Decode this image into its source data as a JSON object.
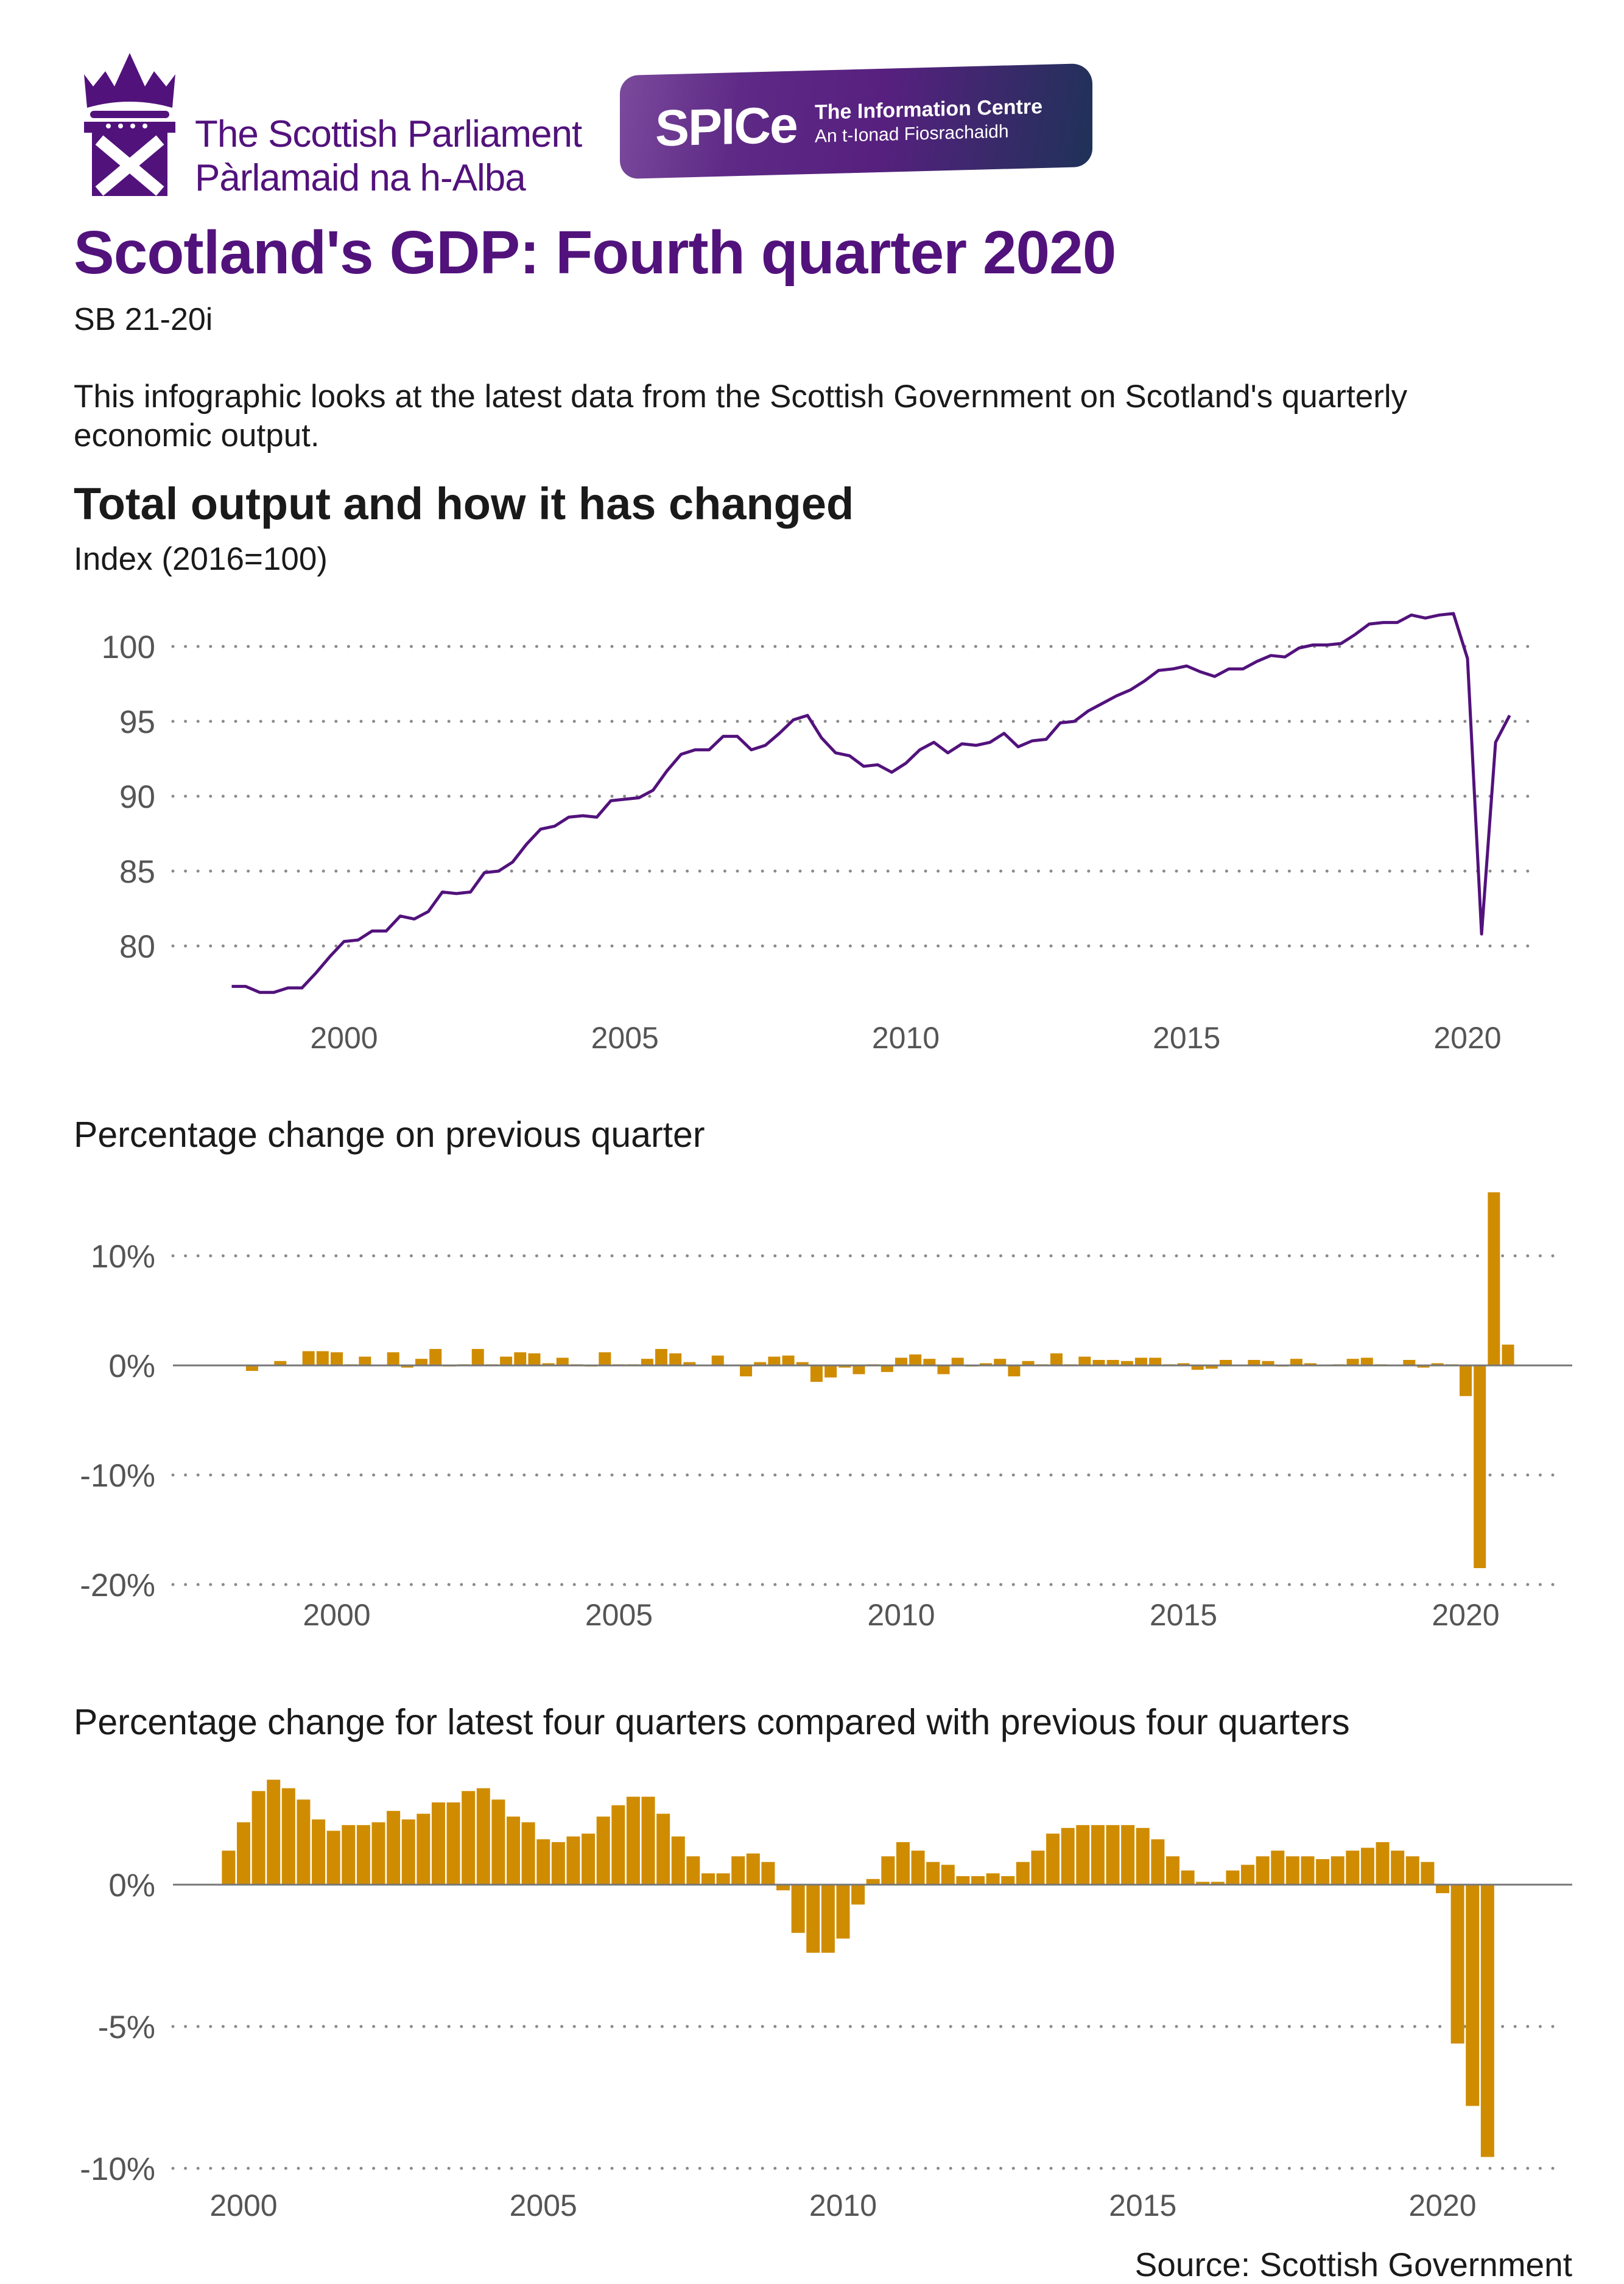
{
  "header": {
    "parliament_name_en": "The Scottish Parliament",
    "parliament_name_gd": "Pàrlamaid na h-Alba",
    "spice_abbr": "SPICe",
    "spice_en": "The Information Centre",
    "spice_gd": "An t-Ionad Fiosrachaidh",
    "logo_icon": "crown-saltire-icon"
  },
  "title": "Scotland's GDP: Fourth quarter 2020",
  "ref": "SB  21-20i",
  "intro": "This infographic looks at the latest data from the Scottish Government on Scotland's quarterly economic output.",
  "section_title": "Total output and how it has changed",
  "source": "Source: Scottish Government",
  "colors": {
    "brand_purple": "#52127c",
    "bar_gold": "#d08c00",
    "grid": "#8a8a8a"
  },
  "chart_data": [
    {
      "type": "line",
      "title": "",
      "ylabel": "Index (2016=100)",
      "start": "1998 Q1",
      "frequency": "quarterly",
      "yticks": [
        80,
        85,
        90,
        95,
        100
      ],
      "ytick_labels": [
        "80",
        "85",
        "90",
        "95",
        "100"
      ],
      "xticks": [
        2000,
        2005,
        2010,
        2015,
        2020
      ],
      "xtick_labels": [
        "2000",
        "2005",
        "2010",
        "2015",
        "2020"
      ],
      "grid": "horizontal dotted",
      "color": "#52127c",
      "values": [
        77.3,
        77.3,
        76.9,
        76.9,
        77.2,
        77.2,
        78.2,
        79.3,
        80.3,
        80.4,
        81.0,
        81.0,
        82.0,
        81.8,
        82.3,
        83.6,
        83.5,
        83.6,
        84.9,
        85.0,
        85.6,
        86.8,
        87.8,
        88.0,
        88.6,
        88.7,
        88.6,
        89.7,
        89.8,
        89.9,
        90.4,
        91.7,
        92.8,
        93.1,
        93.1,
        94.0,
        94.0,
        93.1,
        93.4,
        94.2,
        95.1,
        95.4,
        93.9,
        92.9,
        92.7,
        92.0,
        92.1,
        91.6,
        92.2,
        93.1,
        93.6,
        92.9,
        93.5,
        93.4,
        93.6,
        94.2,
        93.3,
        93.7,
        93.8,
        94.9,
        95.0,
        95.7,
        96.2,
        96.7,
        97.1,
        97.7,
        98.4,
        98.5,
        98.7,
        98.3,
        98.0,
        98.5,
        98.5,
        99.0,
        99.4,
        99.3,
        99.9,
        100.1,
        100.1,
        100.2,
        100.8,
        101.5,
        101.6,
        101.6,
        102.1,
        101.9,
        102.1,
        102.2,
        99.2,
        80.8,
        93.6,
        95.4
      ]
    },
    {
      "type": "bar",
      "title": "Percentage change on previous quarter",
      "start": "1998 Q1",
      "frequency": "quarterly",
      "yticks": [
        10,
        0,
        -10,
        -20
      ],
      "ytick_labels": [
        "10%",
        "0%",
        "-10%",
        "-20%"
      ],
      "xticks": [
        2000,
        2005,
        2010,
        2015,
        2020
      ],
      "xtick_labels": [
        "2000",
        "2005",
        "2010",
        "2015",
        "2020"
      ],
      "grid": "horizontal dotted",
      "color": "#d08c00",
      "values": [
        0.0,
        0.0,
        -0.5,
        0.0,
        0.4,
        0.0,
        1.3,
        1.3,
        1.2,
        0.1,
        0.8,
        0.0,
        1.2,
        -0.2,
        0.6,
        1.5,
        -0.1,
        0.1,
        1.5,
        0.1,
        0.8,
        1.2,
        1.1,
        0.2,
        0.7,
        0.1,
        -0.1,
        1.2,
        0.1,
        0.1,
        0.6,
        1.5,
        1.1,
        0.3,
        0.0,
        0.9,
        0.0,
        -1.0,
        0.3,
        0.8,
        0.9,
        0.3,
        -1.5,
        -1.1,
        -0.2,
        -0.8,
        0.1,
        -0.6,
        0.7,
        1.0,
        0.6,
        -0.8,
        0.7,
        -0.1,
        0.2,
        0.6,
        -1.0,
        0.4,
        0.1,
        1.1,
        0.1,
        0.8,
        0.5,
        0.5,
        0.4,
        0.7,
        0.7,
        0.1,
        0.2,
        -0.4,
        -0.3,
        0.5,
        0.0,
        0.5,
        0.4,
        -0.1,
        0.6,
        0.2,
        0.0,
        0.1,
        0.6,
        0.7,
        0.1,
        0.0,
        0.5,
        -0.2,
        0.2,
        0.1,
        -2.8,
        -18.5,
        15.8,
        1.9
      ]
    },
    {
      "type": "bar",
      "title": "Percentage change for latest four quarters compared with previous four quarters",
      "start": "1999 Q4",
      "frequency": "quarterly",
      "yticks": [
        0,
        -5,
        -10
      ],
      "ytick_labels": [
        "0%",
        "-5%",
        "-10%"
      ],
      "xticks": [
        2000,
        2005,
        2010,
        2015,
        2020
      ],
      "xtick_labels": [
        "2000",
        "2005",
        "2010",
        "2015",
        "2020"
      ],
      "grid": "horizontal dotted",
      "color": "#d08c00",
      "values": [
        1.2,
        2.2,
        3.3,
        3.7,
        3.4,
        3.0,
        2.3,
        1.9,
        2.1,
        2.1,
        2.2,
        2.6,
        2.3,
        2.5,
        2.9,
        2.9,
        3.3,
        3.4,
        3.0,
        2.4,
        2.2,
        1.6,
        1.5,
        1.7,
        1.8,
        2.4,
        2.8,
        3.1,
        3.1,
        2.5,
        1.7,
        1.0,
        0.4,
        0.4,
        1.0,
        1.1,
        0.8,
        -0.2,
        -1.7,
        -2.4,
        -2.4,
        -1.9,
        -0.7,
        0.2,
        1.0,
        1.5,
        1.2,
        0.8,
        0.7,
        0.3,
        0.3,
        0.4,
        0.3,
        0.8,
        1.2,
        1.8,
        2.0,
        2.1,
        2.1,
        2.1,
        2.1,
        2.0,
        1.6,
        1.0,
        0.5,
        0.1,
        0.1,
        0.5,
        0.7,
        1.0,
        1.2,
        1.0,
        1.0,
        0.9,
        1.0,
        1.2,
        1.3,
        1.5,
        1.2,
        1.0,
        0.8,
        -0.3,
        -5.6,
        -7.8,
        -9.6
      ]
    }
  ]
}
